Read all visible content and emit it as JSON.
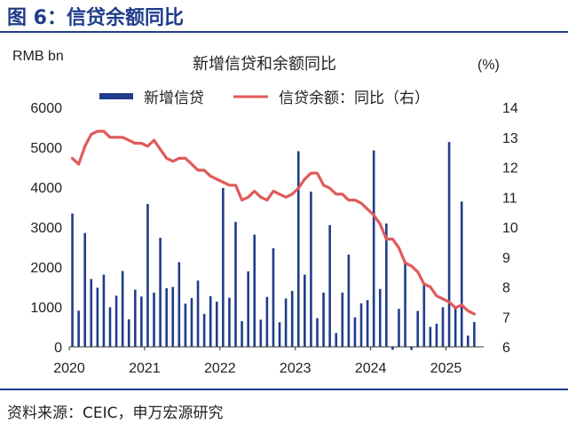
{
  "header": {
    "figure_title": "图 6：信贷余额同比"
  },
  "footer": {
    "source": "资料来源：CEIC，申万宏源研究"
  },
  "chart_data": {
    "type": "bar+line",
    "title": "新增信贷和余额同比",
    "ylabel_left": "RMB bn",
    "ylabel_right": "(%)",
    "y_left": {
      "min": 0,
      "max": 6000,
      "ticks": [
        0,
        1000,
        2000,
        3000,
        4000,
        5000,
        6000
      ]
    },
    "y_right": {
      "min": 6,
      "max": 14,
      "ticks": [
        6,
        7,
        8,
        9,
        10,
        11,
        12,
        13,
        14
      ]
    },
    "x_ticks": [
      "2020",
      "2021",
      "2022",
      "2023",
      "2024",
      "2025"
    ],
    "x_start": "2020-01",
    "x_end": "2025-06",
    "colors": {
      "bars": "#1f3d8a",
      "line": "#e05a5a",
      "title": "#1f3d8a"
    },
    "legend_position": "top",
    "series": [
      {
        "name": "新增信贷",
        "kind": "bar",
        "axis": "left",
        "values": [
          3340,
          905,
          2850,
          1700,
          1480,
          1810,
          992,
          1280,
          1900,
          689,
          1430,
          1260,
          3580,
          1360,
          2730,
          1470,
          1500,
          2120,
          1080,
          1220,
          1660,
          826,
          1270,
          1130,
          3980,
          1230,
          3130,
          645,
          1890,
          2810,
          679,
          1250,
          2470,
          615,
          1210,
          1400,
          4900,
          1810,
          3890,
          719,
          1360,
          3050,
          346,
          1360,
          2310,
          738,
          1090,
          1170,
          4920,
          1450,
          3090,
          -73,
          950,
          2130,
          -77,
          900,
          1590,
          500,
          580,
          990,
          5130,
          1010,
          3640,
          280,
          620
        ]
      },
      {
        "name": "信贷余额：同比（右）",
        "kind": "line",
        "axis": "right",
        "values": [
          12.3,
          12.1,
          12.7,
          13.1,
          13.2,
          13.2,
          13.0,
          13.0,
          13.0,
          12.9,
          12.8,
          12.8,
          12.7,
          12.9,
          12.6,
          12.3,
          12.2,
          12.3,
          12.3,
          12.1,
          11.9,
          11.9,
          11.7,
          11.6,
          11.5,
          11.4,
          11.4,
          10.9,
          11.0,
          11.2,
          11.0,
          10.9,
          11.2,
          11.1,
          11.0,
          11.1,
          11.3,
          11.6,
          11.8,
          11.8,
          11.4,
          11.3,
          11.1,
          11.1,
          10.9,
          10.9,
          10.8,
          10.6,
          10.4,
          10.1,
          9.6,
          9.6,
          9.3,
          8.8,
          8.7,
          8.5,
          8.1,
          8.0,
          7.7,
          7.6,
          7.5,
          7.3,
          7.4,
          7.2,
          7.1
        ]
      }
    ]
  }
}
